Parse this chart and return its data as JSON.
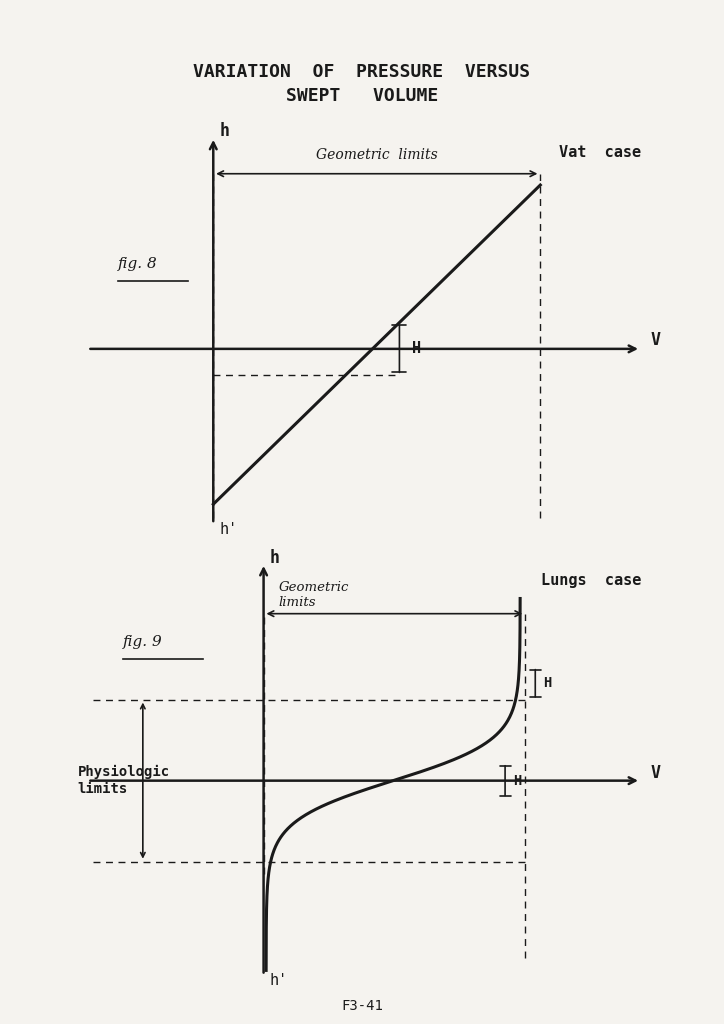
{
  "title_line1": "VARIATION  OF  PRESSURE  VERSUS",
  "title_line2": "SWEPT   VOLUME",
  "bg_color": "#f5f3ef",
  "line_color": "#1a1a1a",
  "fig8_label": "fig. 8",
  "fig9_label": "fig. 9",
  "vat_case_label": "Vat  case",
  "lungs_case_label": "Lungs  case",
  "geo_limits_label": "Geometric  limits",
  "geo_limits_label2": "Geometric\nlimits",
  "physio_limits_label": "Physiologic\nlimits",
  "H_label": "H",
  "h_label": "h",
  "h_prime_label": "h'",
  "V_label": "V",
  "footer": "F3-41"
}
